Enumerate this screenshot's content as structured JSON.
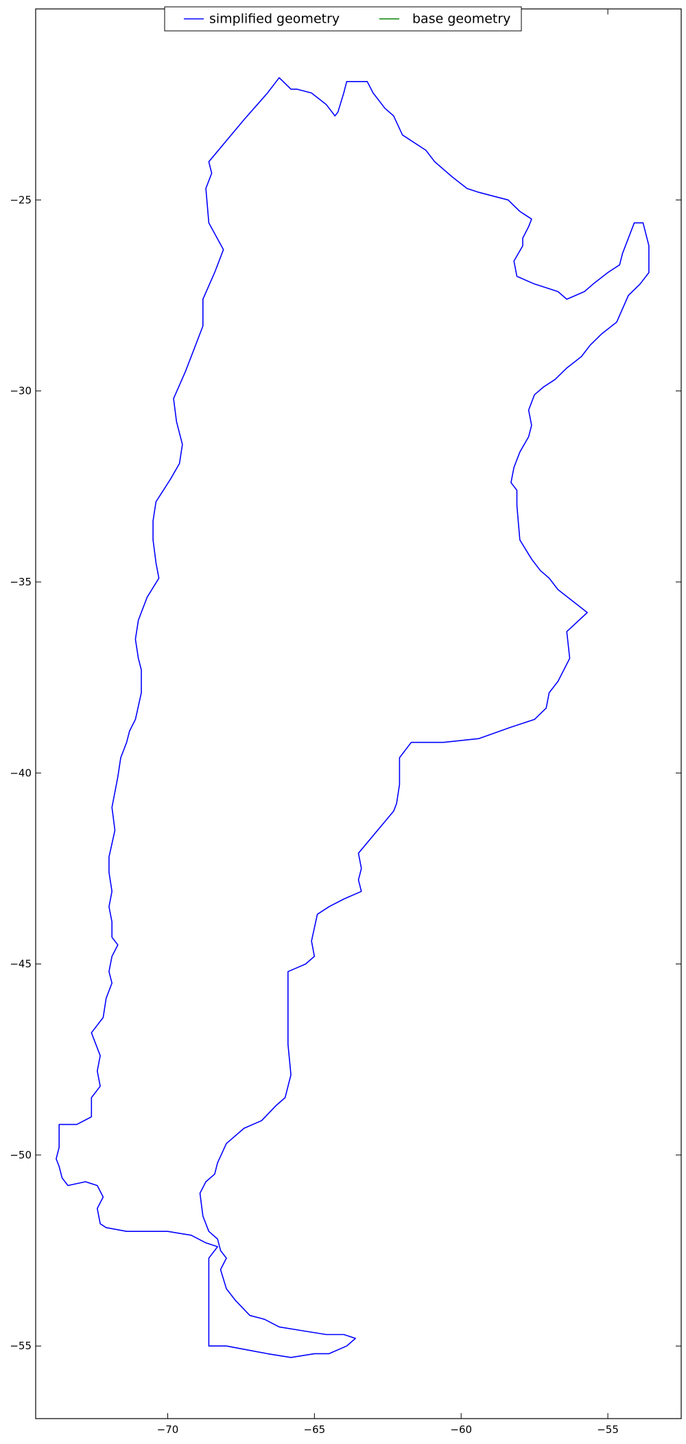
{
  "chart_data": {
    "type": "line",
    "title": "",
    "xlabel": "",
    "ylabel": "",
    "xlim": [
      -74.5,
      -52.5
    ],
    "ylim": [
      -56.9,
      -20.0
    ],
    "xticks": [
      -70,
      -65,
      -60,
      -55
    ],
    "yticks": [
      -25,
      -30,
      -35,
      -40,
      -45,
      -50,
      -55
    ],
    "xtick_labels": [
      "−70",
      "−65",
      "−60",
      "−55"
    ],
    "ytick_labels": [
      "−25",
      "−30",
      "−35",
      "−40",
      "−45",
      "−50",
      "−55"
    ],
    "grid": false,
    "legend": {
      "placement": "top-center",
      "ncol": 2
    },
    "series": [
      {
        "name": "simplified geometry",
        "color": "#0000ff",
        "x": [
          -66.2,
          -65.8,
          -65.6,
          -65.1,
          -64.6,
          -64.3,
          -64.2,
          -64.0,
          -63.9,
          -63.2,
          -63.0,
          -62.9,
          -62.6,
          -62.3,
          -62.0,
          -61.6,
          -61.2,
          -60.9,
          -60.3,
          -59.8,
          -59.4,
          -58.9,
          -58.4,
          -58.0,
          -57.6,
          -57.7,
          -57.9,
          -57.9,
          -58.2,
          -58.1,
          -57.5,
          -57.1,
          -56.7,
          -56.4,
          -55.8,
          -55.5,
          -55.0,
          -54.6,
          -54.5,
          -54.1,
          -53.8,
          -53.6,
          -53.6,
          -53.9,
          -54.3,
          -54.7,
          -55.2,
          -55.6,
          -55.9,
          -56.4,
          -56.8,
          -57.2,
          -57.5,
          -57.7,
          -57.6,
          -57.7,
          -58.0,
          -58.2,
          -58.3,
          -58.1,
          -58.1,
          -58.0,
          -57.6,
          -57.3,
          -57.0,
          -56.7,
          -55.7,
          -56.4,
          -56.3,
          -56.7,
          -57.0,
          -57.1,
          -57.5,
          -58.3,
          -59.4,
          -60.6,
          -61.7,
          -62.1,
          -62.1,
          -62.2,
          -62.3,
          -63.5,
          -63.4,
          -63.5,
          -63.4,
          -64.0,
          -64.5,
          -64.9,
          -65.1,
          -65.0,
          -65.3,
          -65.6,
          -65.9,
          -65.9,
          -65.8,
          -66.0,
          -66.3,
          -66.8,
          -67.4,
          -68.0,
          -68.3,
          -68.4,
          -68.7,
          -68.9,
          -68.8,
          -68.6,
          -68.3,
          -68.2,
          -68.0,
          -68.2,
          -68.0,
          -67.7,
          -67.2,
          -66.7,
          -66.2,
          -65.4,
          -64.6,
          -64.0,
          -63.6,
          -63.9,
          -64.5,
          -65.0,
          -65.8,
          -66.6,
          -67.3,
          -68.0,
          -68.6,
          -68.6,
          -68.3,
          -68.7,
          -69.2,
          -70.0,
          -71.4,
          -72.1,
          -72.3,
          -72.4,
          -72.2,
          -72.4,
          -72.8,
          -73.4,
          -73.6,
          -73.7,
          -73.8,
          -73.7,
          -73.7,
          -73.1,
          -72.6,
          -72.6,
          -72.3,
          -72.4,
          -72.3,
          -72.6,
          -72.2,
          -72.1,
          -71.9,
          -72.0,
          -71.9,
          -71.7,
          -71.9,
          -71.9,
          -72.0,
          -71.9,
          -72.0,
          -72.0,
          -71.8,
          -71.9,
          -71.8,
          -71.7,
          -71.6,
          -71.4,
          -71.3,
          -71.1,
          -70.9,
          -70.9,
          -71.0,
          -71.1,
          -71.0,
          -70.7,
          -70.3,
          -70.4,
          -70.5,
          -70.5,
          -70.4,
          -69.9,
          -69.6,
          -69.5,
          -69.6,
          -69.7,
          -69.8,
          -69.4,
          -69.1,
          -68.8,
          -68.8,
          -68.4,
          -68.1,
          -68.6,
          -68.7,
          -68.5,
          -68.6,
          -67.4,
          -66.6,
          -66.4,
          -66.2
        ],
        "y": [
          -21.8,
          -22.1,
          -22.1,
          -22.2,
          -22.5,
          -22.8,
          -22.7,
          -22.2,
          -21.9,
          -21.9,
          -22.2,
          -22.3,
          -22.6,
          -22.8,
          -23.3,
          -23.5,
          -23.7,
          -24.0,
          -24.4,
          -24.7,
          -24.8,
          -24.9,
          -25.0,
          -25.3,
          -25.5,
          -25.7,
          -26.0,
          -26.2,
          -26.6,
          -27.0,
          -27.2,
          -27.3,
          -27.4,
          -27.6,
          -27.4,
          -27.2,
          -26.9,
          -26.7,
          -26.4,
          -25.6,
          -25.6,
          -26.2,
          -26.9,
          -27.2,
          -27.5,
          -28.2,
          -28.5,
          -28.8,
          -29.1,
          -29.4,
          -29.7,
          -29.9,
          -30.1,
          -30.5,
          -30.9,
          -31.2,
          -31.6,
          -32.0,
          -32.4,
          -32.6,
          -33.0,
          -33.9,
          -34.4,
          -34.7,
          -34.9,
          -35.2,
          -35.8,
          -36.3,
          -37.0,
          -37.6,
          -37.9,
          -38.3,
          -38.6,
          -38.8,
          -39.1,
          -39.2,
          -39.2,
          -39.6,
          -40.3,
          -40.8,
          -41.0,
          -42.1,
          -42.5,
          -42.8,
          -43.1,
          -43.3,
          -43.5,
          -43.7,
          -44.4,
          -44.8,
          -45.0,
          -45.1,
          -45.2,
          -47.1,
          -47.9,
          -48.5,
          -48.7,
          -49.1,
          -49.3,
          -49.7,
          -50.2,
          -50.5,
          -50.7,
          -51.0,
          -51.6,
          -52.0,
          -52.2,
          -52.5,
          -52.7,
          -53.0,
          -53.5,
          -53.8,
          -54.2,
          -54.3,
          -54.5,
          -54.6,
          -54.7,
          -54.7,
          -54.8,
          -55.0,
          -55.2,
          -55.2,
          -55.3,
          -55.2,
          -55.1,
          -55.0,
          -55.0,
          -52.7,
          -52.4,
          -52.3,
          -52.1,
          -52.0,
          -52.0,
          -51.9,
          -51.8,
          -51.4,
          -51.1,
          -50.8,
          -50.7,
          -50.8,
          -50.6,
          -50.3,
          -50.1,
          -49.8,
          -49.2,
          -49.2,
          -49.0,
          -48.5,
          -48.2,
          -47.8,
          -47.4,
          -46.8,
          -46.4,
          -45.9,
          -45.5,
          -45.2,
          -44.8,
          -44.5,
          -44.3,
          -43.9,
          -43.5,
          -43.1,
          -42.6,
          -42.2,
          -41.5,
          -40.9,
          -40.5,
          -40.1,
          -39.6,
          -39.2,
          -38.9,
          -38.6,
          -37.9,
          -37.3,
          -37.0,
          -36.5,
          -36.0,
          -35.4,
          -34.9,
          -34.5,
          -33.9,
          -33.4,
          -32.9,
          -32.3,
          -31.9,
          -31.4,
          -31.1,
          -30.8,
          -30.2,
          -29.5,
          -28.9,
          -28.3,
          -27.6,
          -26.9,
          -26.3,
          -25.6,
          -24.7,
          -24.3,
          -24.0,
          -22.9,
          -22.2,
          -22.0,
          -21.8
        ]
      },
      {
        "name": "base geometry",
        "color": "#008000",
        "x": [],
        "y": []
      }
    ]
  }
}
